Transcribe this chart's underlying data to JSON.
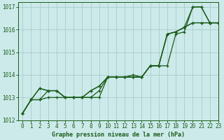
{
  "title": "Graphe pression niveau de la mer (hPa)",
  "bg_color": "#cceaea",
  "grid_color": "#aacccc",
  "line_color": "#1a5c1a",
  "xlim": [
    -0.5,
    23
  ],
  "ylim": [
    1012,
    1017.2
  ],
  "yticks": [
    1012,
    1013,
    1014,
    1015,
    1016,
    1017
  ],
  "xticks": [
    0,
    1,
    2,
    3,
    4,
    5,
    6,
    7,
    8,
    9,
    10,
    11,
    12,
    13,
    14,
    15,
    16,
    17,
    18,
    19,
    20,
    21,
    22,
    23
  ],
  "series": [
    [
      1012.3,
      1012.9,
      1012.9,
      1013.0,
      1013.0,
      1013.0,
      1013.0,
      1013.0,
      1013.0,
      1013.0,
      1013.9,
      1013.9,
      1013.9,
      1013.9,
      1013.9,
      1014.4,
      1014.4,
      1014.4,
      1015.8,
      1015.9,
      1017.0,
      1017.0,
      1016.3,
      1016.3
    ],
    [
      1012.3,
      1012.9,
      1012.9,
      1013.3,
      1013.3,
      1013.0,
      1013.0,
      1013.0,
      1013.0,
      1013.3,
      1013.9,
      1013.9,
      1013.9,
      1013.9,
      1013.9,
      1014.4,
      1014.4,
      1015.8,
      1015.9,
      1016.1,
      1017.0,
      1017.0,
      1016.3,
      1016.3
    ],
    [
      1012.3,
      1012.9,
      1013.4,
      1013.3,
      1013.3,
      1013.0,
      1013.0,
      1013.0,
      1013.3,
      1013.5,
      1013.9,
      1013.9,
      1013.9,
      1013.9,
      1013.9,
      1014.4,
      1014.4,
      1015.8,
      1015.9,
      1016.1,
      1016.3,
      1016.3,
      1016.3,
      1016.3
    ],
    [
      1012.3,
      1012.9,
      1013.4,
      1013.3,
      1013.3,
      1013.0,
      1013.0,
      1013.0,
      1013.3,
      1013.5,
      1013.9,
      1013.9,
      1013.9,
      1014.0,
      1013.9,
      1014.4,
      1014.4,
      1015.8,
      1015.9,
      1016.1,
      1016.3,
      1016.3,
      1016.3,
      1016.3
    ]
  ]
}
